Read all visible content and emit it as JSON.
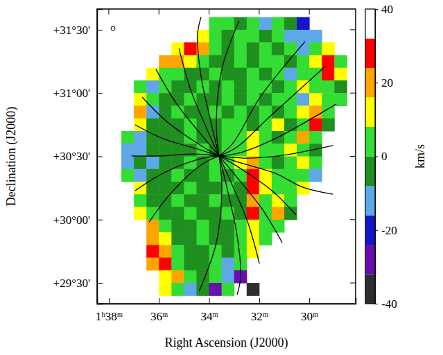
{
  "chart_data": {
    "type": "heatmap",
    "x_label": "Right Ascension (J2000)",
    "y_label": "Declination (J2000)",
    "xlim": [
      98.47,
      88.15
    ],
    "xticks": [
      {
        "value": 98,
        "label": "1ʰ38ᵐ"
      },
      {
        "value": 96,
        "label": "36ᵐ"
      },
      {
        "value": 94,
        "label": "34ᵐ"
      },
      {
        "value": 92,
        "label": "32ᵐ"
      },
      {
        "value": 90,
        "label": "30ᵐ"
      }
    ],
    "ylim": [
      29.336,
      31.664
    ],
    "yticks": [
      {
        "value": 31.5,
        "label": "+31°30'"
      },
      {
        "value": 31.0,
        "label": "+31°00'"
      },
      {
        "value": 30.5,
        "label": "+30°30'"
      },
      {
        "value": 30.0,
        "label": "+30°00'"
      },
      {
        "value": 29.5,
        "label": "+29°30'"
      }
    ],
    "ra_edges": [
      97.5,
      97,
      96.5,
      96,
      95.5,
      95,
      94.5,
      94,
      93.5,
      93,
      92.5,
      92,
      91.5,
      91,
      90.5,
      90,
      89.5,
      89,
      88.5
    ],
    "dec_edges": [
      31.6,
      31.5,
      31.4,
      31.3,
      31.2,
      31.1,
      31.0,
      30.9,
      30.8,
      30.7,
      30.6,
      30.5,
      30.4,
      30.3,
      30.2,
      30.1,
      30.0,
      29.9,
      29.8,
      29.7,
      29.6,
      29.5,
      29.4
    ],
    "cells": [
      [
        null,
        null,
        null,
        null,
        null,
        null,
        null,
        4,
        4,
        -4,
        4,
        -12,
        4,
        -4,
        -20,
        null,
        null,
        null
      ],
      [
        null,
        null,
        null,
        null,
        null,
        null,
        12,
        4,
        -4,
        4,
        4,
        -4,
        4,
        -12,
        -12,
        -12,
        null,
        null
      ],
      [
        null,
        null,
        null,
        null,
        12,
        28,
        20,
        4,
        -4,
        4,
        -4,
        4,
        -4,
        4,
        -12,
        4,
        12,
        null
      ],
      [
        null,
        null,
        null,
        20,
        20,
        12,
        4,
        -4,
        -4,
        4,
        -4,
        4,
        4,
        -4,
        4,
        12,
        28,
        4
      ],
      [
        null,
        null,
        12,
        4,
        4,
        -4,
        -4,
        4,
        -4,
        -4,
        4,
        -4,
        4,
        -12,
        4,
        4,
        28,
        12
      ],
      [
        null,
        4,
        -12,
        4,
        -4,
        -4,
        4,
        -4,
        4,
        -4,
        4,
        4,
        -4,
        4,
        12,
        4,
        4,
        -4
      ],
      [
        null,
        12,
        4,
        -4,
        -4,
        4,
        -4,
        -4,
        4,
        -4,
        4,
        -4,
        4,
        4,
        -12,
        12,
        4,
        4
      ],
      [
        null,
        20,
        -12,
        -4,
        4,
        -4,
        -4,
        4,
        -4,
        4,
        -4,
        4,
        -4,
        4,
        12,
        20,
        4,
        null
      ],
      [
        null,
        12,
        -4,
        -4,
        -4,
        4,
        -4,
        -4,
        4,
        4,
        -4,
        4,
        12,
        -4,
        4,
        28,
        -4,
        null
      ],
      [
        4,
        -12,
        -4,
        -4,
        -4,
        4,
        -4,
        -4,
        4,
        4,
        12,
        4,
        -4,
        4,
        20,
        4,
        null,
        null
      ],
      [
        -12,
        -12,
        -4,
        -4,
        -4,
        -4,
        4,
        -4,
        4,
        4,
        12,
        4,
        4,
        12,
        4,
        -4,
        null,
        null
      ],
      [
        -12,
        -4,
        -12,
        -4,
        -4,
        4,
        -4,
        4,
        4,
        12,
        20,
        4,
        -4,
        4,
        12,
        4,
        null,
        null
      ],
      [
        4,
        -12,
        -4,
        -4,
        4,
        -4,
        -4,
        4,
        -4,
        4,
        28,
        12,
        4,
        4,
        4,
        -12,
        null,
        null
      ],
      [
        null,
        12,
        -4,
        -4,
        -4,
        4,
        -4,
        -4,
        4,
        -4,
        28,
        12,
        4,
        4,
        12,
        null,
        null,
        null
      ],
      [
        null,
        4,
        -4,
        -4,
        4,
        -4,
        -4,
        4,
        -4,
        -4,
        20,
        4,
        12,
        4,
        null,
        null,
        null,
        null
      ],
      [
        null,
        12,
        4,
        -4,
        -4,
        4,
        -4,
        -4,
        4,
        -4,
        28,
        4,
        20,
        -4,
        null,
        null,
        null,
        null
      ],
      [
        null,
        null,
        20,
        4,
        -4,
        -4,
        4,
        -4,
        -4,
        4,
        12,
        4,
        4,
        null,
        null,
        null,
        null,
        null
      ],
      [
        null,
        null,
        20,
        12,
        -4,
        -4,
        4,
        -4,
        -4,
        4,
        12,
        4,
        null,
        null,
        null,
        null,
        null,
        null
      ],
      [
        null,
        null,
        28,
        20,
        4,
        -4,
        -4,
        4,
        -4,
        4,
        12,
        null,
        null,
        null,
        null,
        null,
        null,
        null
      ],
      [
        null,
        null,
        20,
        28,
        4,
        -4,
        -4,
        4,
        -12,
        4,
        null,
        null,
        null,
        null,
        null,
        null,
        null,
        null
      ],
      [
        null,
        null,
        null,
        12,
        20,
        4,
        -4,
        4,
        -12,
        -28,
        null,
        null,
        null,
        null,
        null,
        null,
        null,
        null
      ],
      [
        null,
        null,
        null,
        12,
        4,
        -12,
        -4,
        -28,
        4,
        null,
        -36,
        null,
        null,
        null,
        null,
        null,
        null,
        null
      ]
    ],
    "contours": [
      {
        "ra": [
          93.6,
          93.71,
          93.49,
          92.8
        ],
        "dec": [
          30.503,
          30.749,
          31.188,
          31.571
        ]
      },
      {
        "ra": [
          93.6,
          93.9,
          94.32,
          94.46,
          94.32
        ],
        "dec": [
          30.503,
          30.749,
          31.133,
          31.462,
          31.6
        ]
      },
      {
        "ra": [
          93.6,
          94.04,
          94.73,
          95.2
        ],
        "dec": [
          30.503,
          30.695,
          31.023,
          31.352
        ]
      },
      {
        "ra": [
          93.6,
          94.18,
          95.29,
          96.12
        ],
        "dec": [
          30.503,
          30.64,
          30.914,
          31.188
        ]
      },
      {
        "ra": [
          93.6,
          94.32,
          95.7,
          96.67
        ],
        "dec": [
          30.503,
          30.585,
          30.777,
          30.968
        ]
      },
      {
        "ra": [
          93.6,
          94.46,
          95.84,
          96.95
        ],
        "dec": [
          30.503,
          30.558,
          30.64,
          30.749
        ]
      },
      {
        "ra": [
          93.6,
          94.6,
          95.98,
          97.09
        ],
        "dec": [
          30.503,
          30.519,
          30.503,
          30.503
        ]
      },
      {
        "ra": [
          93.6,
          94.46,
          95.84,
          96.95
        ],
        "dec": [
          30.503,
          30.475,
          30.366,
          30.229
        ]
      },
      {
        "ra": [
          93.6,
          94.32,
          95.56,
          96.39
        ],
        "dec": [
          30.503,
          30.432,
          30.201,
          29.982
        ]
      },
      {
        "ra": [
          93.6,
          93.49,
          93.71,
          94.4
        ],
        "dec": [
          30.503,
          30.256,
          29.818,
          29.434
        ]
      },
      {
        "ra": [
          93.6,
          93.29,
          92.88,
          92.74,
          92.88
        ],
        "dec": [
          30.503,
          30.256,
          29.873,
          29.544,
          29.407
        ]
      },
      {
        "ra": [
          93.6,
          93.16,
          92.46,
          91.99
        ],
        "dec": [
          30.503,
          30.311,
          29.982,
          29.653
        ]
      },
      {
        "ra": [
          93.6,
          93.02,
          91.91,
          91.08
        ],
        "dec": [
          30.503,
          30.366,
          30.092,
          29.818
        ]
      },
      {
        "ra": [
          93.6,
          92.88,
          91.49,
          90.53
        ],
        "dec": [
          30.503,
          30.421,
          30.229,
          30.037
        ]
      },
      {
        "ra": [
          93.6,
          92.74,
          91.36,
          90.25,
          89.06
        ],
        "dec": [
          30.503,
          30.448,
          30.366,
          30.256,
          30.201
        ]
      },
      {
        "ra": [
          93.6,
          92.6,
          91.22,
          89.06
        ],
        "dec": [
          30.503,
          30.486,
          30.503,
          30.585
        ]
      },
      {
        "ra": [
          93.6,
          92.74,
          91.36,
          88.92
        ],
        "dec": [
          30.503,
          30.53,
          30.64,
          30.914
        ]
      },
      {
        "ra": [
          93.6,
          92.88,
          91.63,
          89.34
        ],
        "dec": [
          30.503,
          30.574,
          30.804,
          31.215
        ]
      },
      {
        "ra": [
          93.6,
          93.02,
          91.96,
          90.17
        ],
        "dec": [
          30.503,
          30.612,
          30.968,
          31.407
        ]
      }
    ],
    "colorbar": {
      "label": "km/s",
      "range": [
        -40,
        40
      ],
      "ticks": [
        40,
        20,
        0,
        -20,
        -40
      ],
      "bounds": [
        -40,
        -32,
        -24,
        -16,
        -8,
        0,
        8,
        16,
        24,
        32,
        40
      ],
      "colors": [
        "#2e2e2e",
        "#6a0dad",
        "#1414c8",
        "#5ea8e8",
        "#1f8f1f",
        "#33dd33",
        "#ffff00",
        "#ffa500",
        "#ff0000",
        "#ffffff"
      ]
    }
  }
}
